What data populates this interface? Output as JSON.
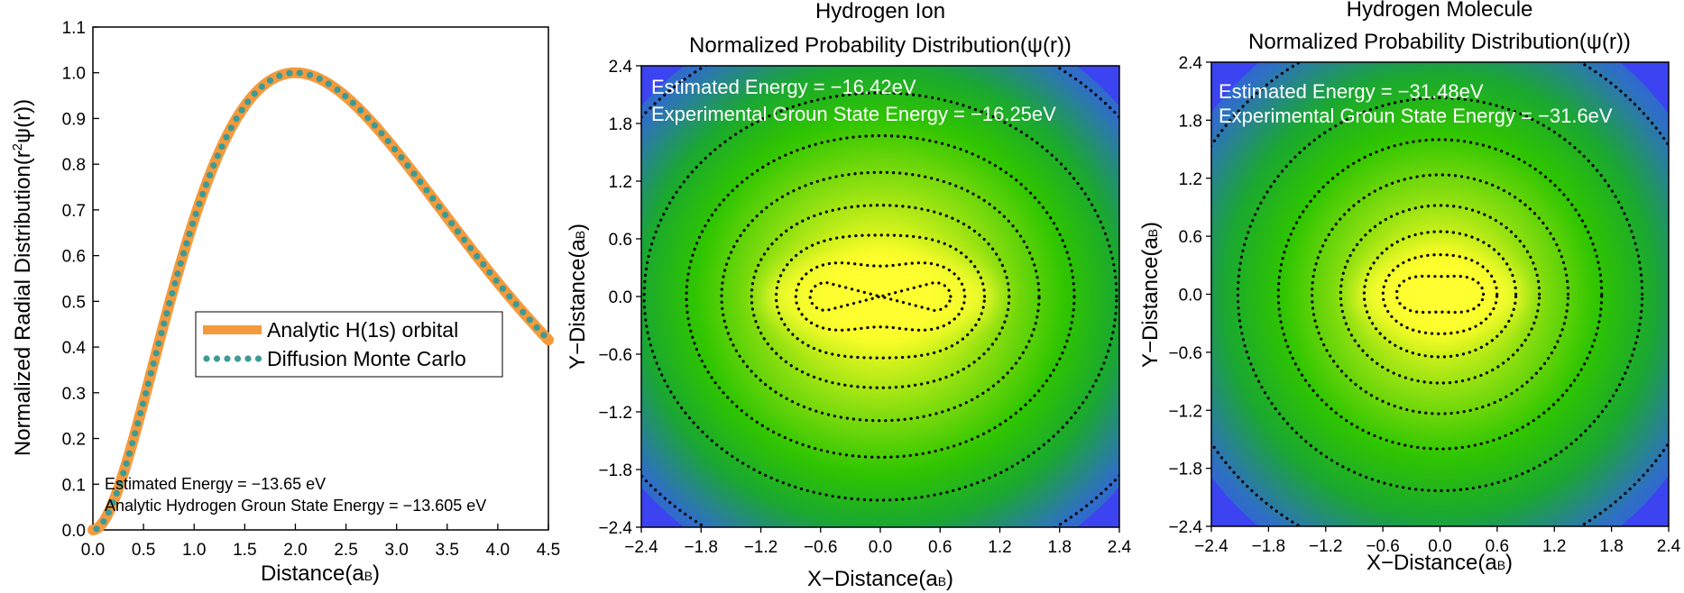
{
  "chart_data": [
    {
      "type": "line",
      "title": "",
      "xlabel": "Distance(a",
      "xlabel_sub": "B",
      "xlabel_close": ")",
      "ylabel_prefix": "Normalized Radial Distribution(r",
      "ylabel_sup": "2",
      "ylabel_suffix": "ψ(r))",
      "xlim": [
        0,
        4.5
      ],
      "ylim": [
        0,
        1.1
      ],
      "xticks": [
        "0.0",
        "0.5",
        "1.0",
        "1.5",
        "2.0",
        "2.5",
        "3.0",
        "3.5",
        "4.0",
        "4.5"
      ],
      "yticks": [
        "0.0",
        "0.1",
        "0.2",
        "0.3",
        "0.4",
        "0.5",
        "0.6",
        "0.7",
        "0.8",
        "0.9",
        "1.0",
        "1.1"
      ],
      "series": [
        {
          "name": "Analytic H(1s) orbital",
          "style": "solid",
          "color": "#f59a3c",
          "function": "(x/2)^2*exp(2-x)"
        },
        {
          "name": "Diffusion Monte Carlo",
          "style": "dotted",
          "color": "#3d9a94",
          "function": "(x/2)^2*exp(2-x)"
        }
      ],
      "annotations": [
        "Estimated Energy = −13.65 eV",
        "Analytic Hydrogen Groun State Energy = −13.605 eV"
      ],
      "legend_position": "center-right"
    },
    {
      "type": "heatmap",
      "title_line1": "Hydrogen Ion",
      "title_line2": "Normalized Probability Distribution(ψ(r))",
      "xlabel": "X−Distance(a",
      "ylabel": "Y−Distance(a",
      "label_sub": "B",
      "label_close": ")",
      "xlim": [
        -2.4,
        2.4
      ],
      "ylim": [
        -2.4,
        2.4
      ],
      "xticks": [
        "−2.4",
        "−1.8",
        "−1.2",
        "−0.6",
        "0.0",
        "0.6",
        "1.2",
        "1.8",
        "2.4"
      ],
      "yticks": [
        "−2.4",
        "−1.8",
        "−1.2",
        "−0.6",
        "0.0",
        "0.6",
        "1.2",
        "1.8",
        "2.4"
      ],
      "nuclei_x": [
        -0.6,
        0.6
      ],
      "contour_levels": [
        0.9,
        0.78,
        0.64,
        0.5,
        0.37,
        0.26,
        0.17,
        0.08
      ],
      "annotations": [
        "Estimated Energy = −16.42eV",
        "Experimental Groun State Energy = −16.25eV"
      ]
    },
    {
      "type": "heatmap",
      "title_line1": "Hydrogen Molecule",
      "title_line2": "Normalized Probability Distribution(ψ(r))",
      "xlabel": "X−Distance(a",
      "ylabel": "Y−Distance(a",
      "label_sub": "B",
      "label_close": ")",
      "xlim": [
        -2.4,
        2.4
      ],
      "ylim": [
        -2.4,
        2.4
      ],
      "xticks": [
        "−2.4",
        "−1.8",
        "−1.2",
        "−0.6",
        "0.0",
        "0.6",
        "1.2",
        "1.8",
        "2.4"
      ],
      "yticks": [
        "−2.4",
        "−1.8",
        "−1.2",
        "−0.6",
        "0.0",
        "0.6",
        "1.2",
        "1.8",
        "2.4"
      ],
      "nuclei_x": [
        -0.35,
        0.35
      ],
      "contour_levels": [
        0.9,
        0.78,
        0.64,
        0.5,
        0.37,
        0.26,
        0.17,
        0.08
      ],
      "annotations": [
        "Estimated Energy = −31.48eV",
        "Experimental Groun State Energy = −31.6eV"
      ]
    }
  ],
  "colors": {
    "peak": "#ffff30",
    "mid": "#33cc00",
    "edge": "#3b44f0",
    "contour": "#000000"
  }
}
